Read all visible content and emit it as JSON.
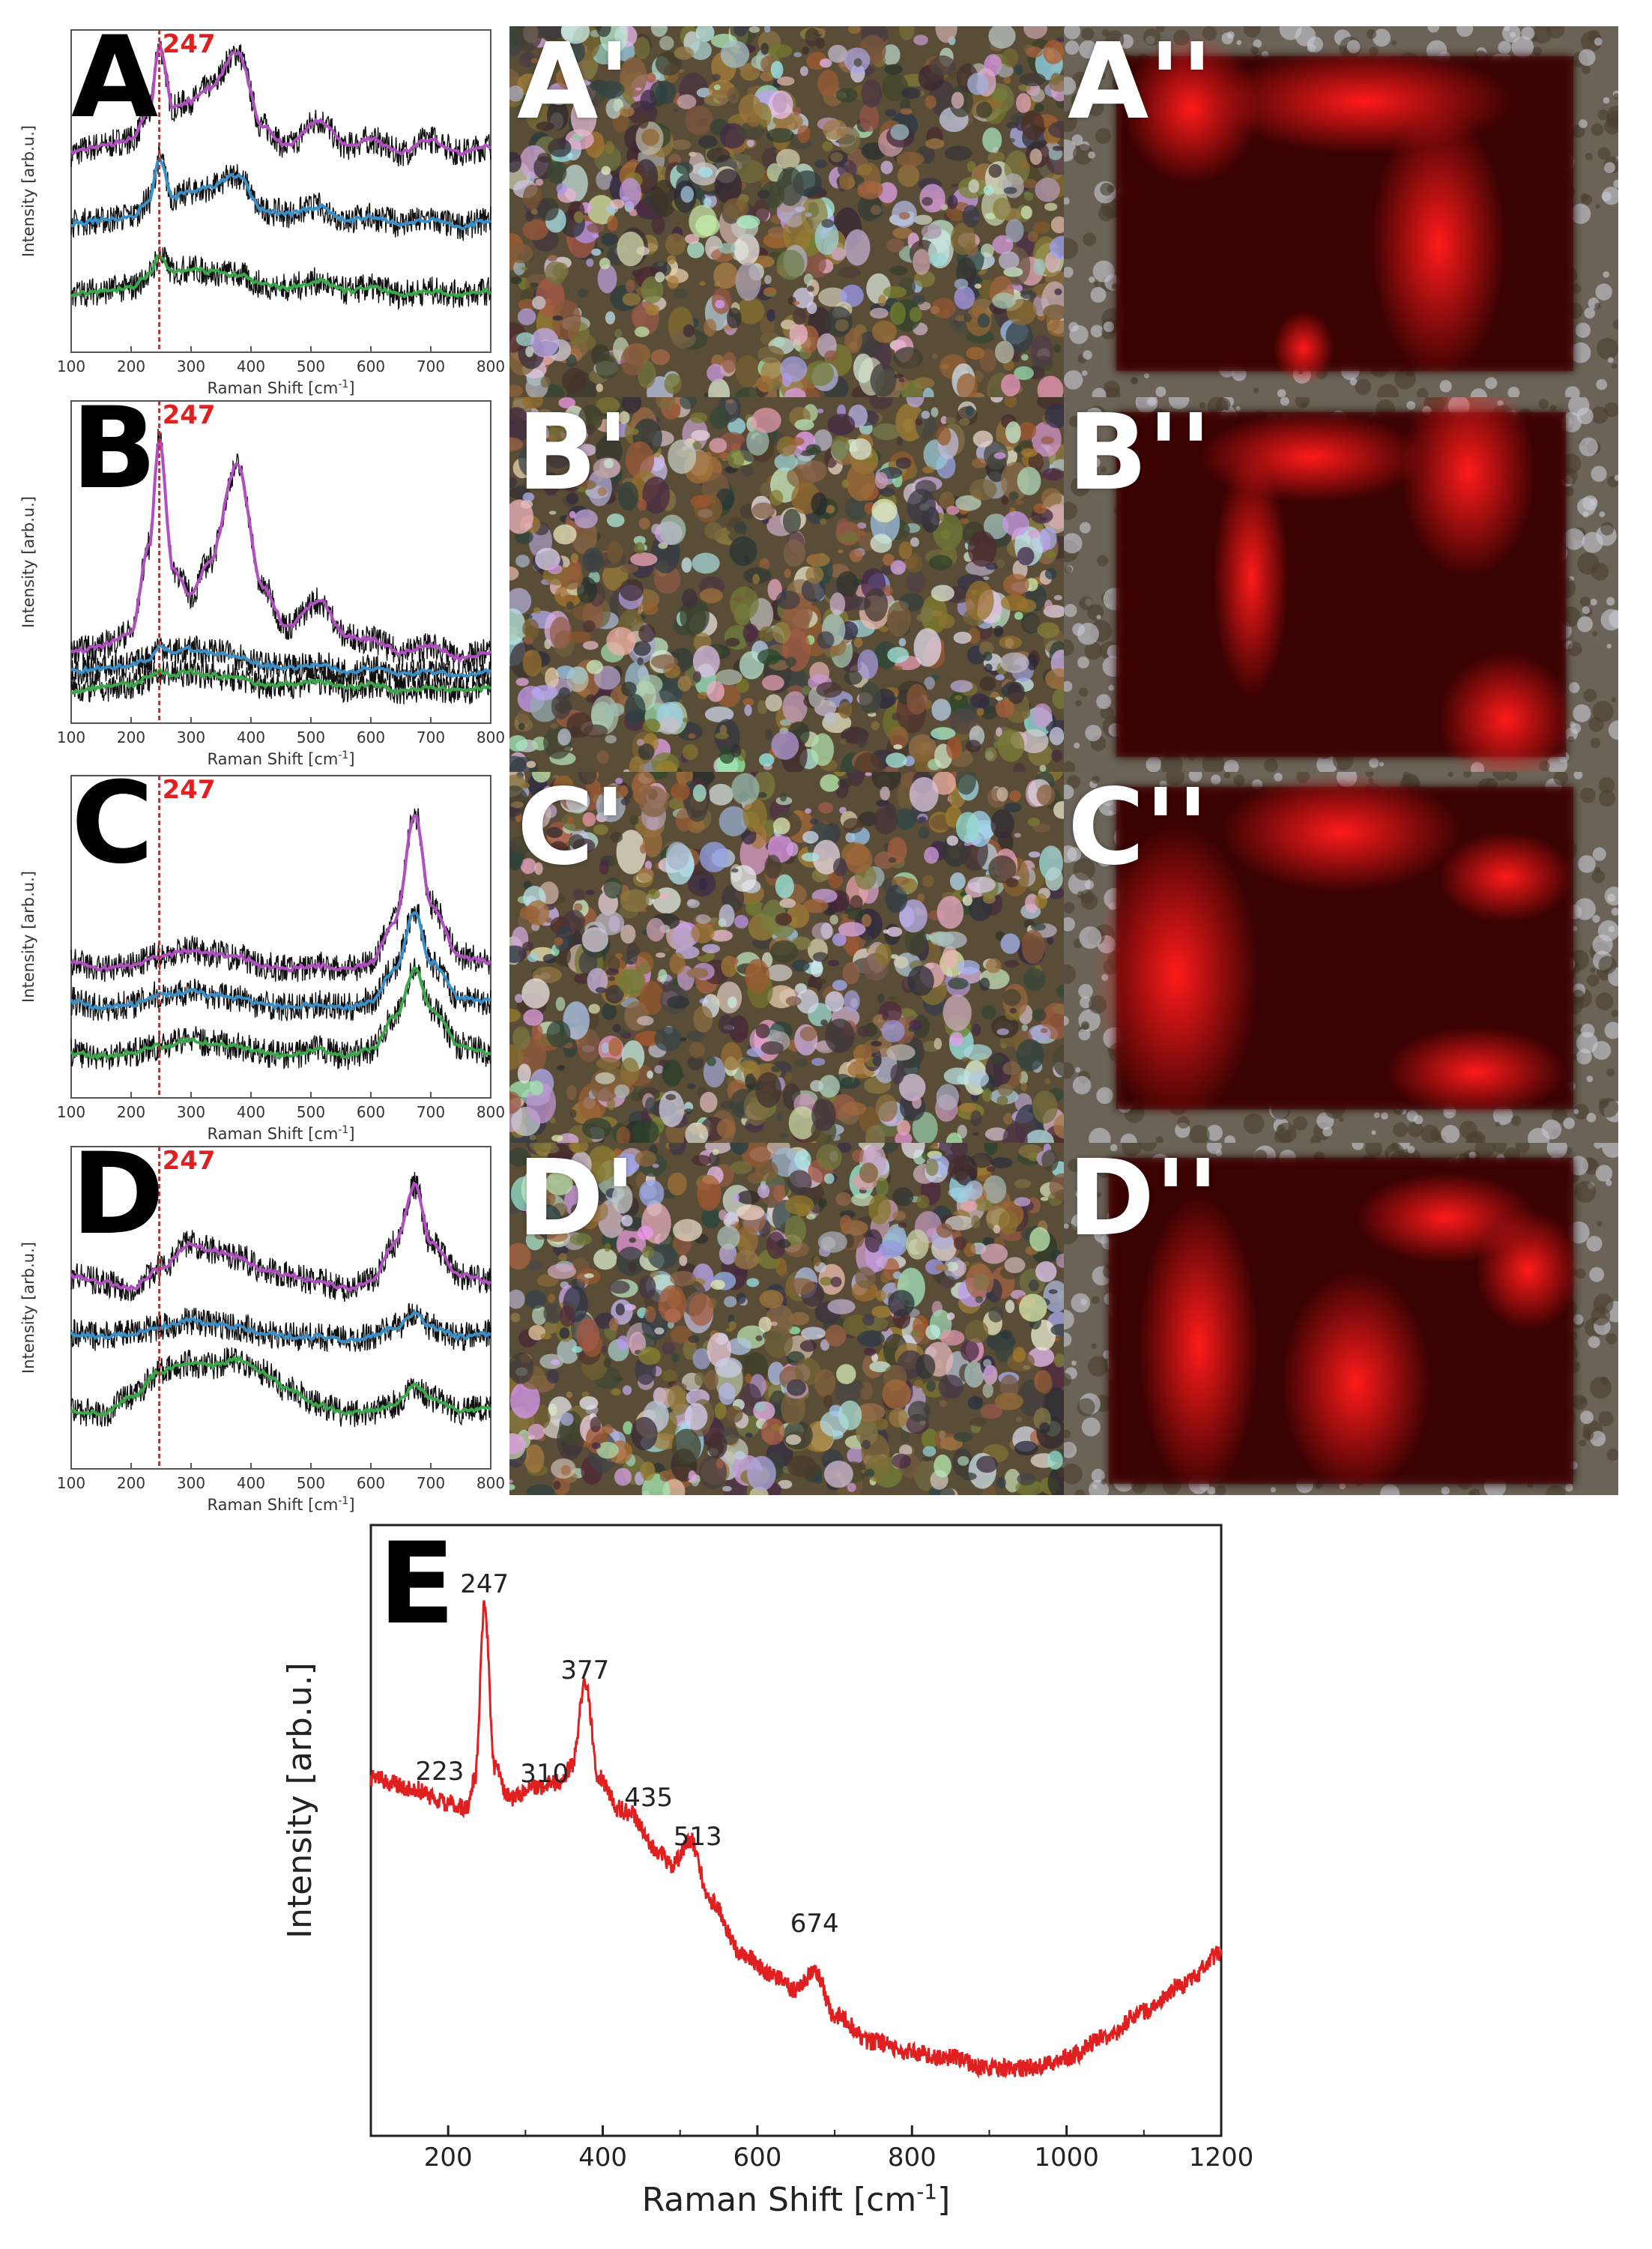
{
  "figure": {
    "small_panels": [
      {
        "letter": "A",
        "marker_label": "247",
        "xlabel_main": "Raman Shift [cm",
        "xlabel_sup": "-1",
        "xlabel_end": "]",
        "ylabel": "Intensity [arb.u.]",
        "xticks": [
          "100",
          "200",
          "300",
          "400",
          "500",
          "600",
          "700",
          "800"
        ]
      },
      {
        "letter": "B",
        "marker_label": "247",
        "xlabel_main": "Raman Shift [cm",
        "xlabel_sup": "-1",
        "xlabel_end": "]",
        "ylabel": "Intensity [arb.u.]",
        "xticks": [
          "100",
          "200",
          "300",
          "400",
          "500",
          "600",
          "700",
          "800"
        ]
      },
      {
        "letter": "C",
        "marker_label": "247",
        "xlabel_main": "Raman Shift [cm",
        "xlabel_sup": "-1",
        "xlabel_end": "]",
        "ylabel": "Intensity [arb.u.]",
        "xticks": [
          "100",
          "200",
          "300",
          "400",
          "500",
          "600",
          "700",
          "800"
        ]
      },
      {
        "letter": "D",
        "marker_label": "247",
        "xlabel_main": "Raman Shift [cm",
        "xlabel_sup": "-1",
        "xlabel_end": "]",
        "ylabel": "Intensity [arb.u.]",
        "xticks": [
          "100",
          "200",
          "300",
          "400",
          "500",
          "600",
          "700",
          "800"
        ]
      }
    ],
    "micrograph_labels": [
      "A'",
      "B'",
      "C'",
      "D'"
    ],
    "map_labels": [
      "A''",
      "B''",
      "C''",
      "D''"
    ],
    "panel_e": {
      "letter": "E",
      "ylabel": "Intensity [arb.u.]",
      "xlabel_main": "Raman Shift [cm",
      "xlabel_sup": "-1",
      "xlabel_end": "]",
      "xticks": [
        "200",
        "400",
        "600",
        "800",
        "1000",
        "1200"
      ],
      "peak_labels": [
        "247",
        "377",
        "223",
        "310",
        "435",
        "513",
        "674"
      ]
    },
    "colors": {
      "purple": "#b04fc0",
      "blue": "#3a8fc8",
      "green": "#3aa84a",
      "red": "#e02020",
      "marker": "#e02020"
    }
  },
  "chart_data": [
    {
      "type": "line",
      "title": "A",
      "xlabel": "Raman Shift [cm-1]",
      "ylabel": "Intensity [arb.u.]",
      "xlim": [
        100,
        800
      ],
      "x": [
        100,
        150,
        200,
        230,
        247,
        270,
        300,
        330,
        377,
        420,
        460,
        513,
        560,
        600,
        650,
        700,
        750,
        800
      ],
      "series": [
        {
          "values": [
            0.62,
            0.64,
            0.66,
            0.74,
            0.95,
            0.76,
            0.78,
            0.82,
            0.93,
            0.7,
            0.64,
            0.72,
            0.64,
            0.66,
            0.62,
            0.66,
            0.62,
            0.64
          ]
        },
        {
          "values": [
            0.4,
            0.41,
            0.42,
            0.47,
            0.6,
            0.48,
            0.5,
            0.51,
            0.55,
            0.44,
            0.43,
            0.45,
            0.41,
            0.42,
            0.4,
            0.41,
            0.39,
            0.41
          ]
        },
        {
          "values": [
            0.18,
            0.19,
            0.2,
            0.24,
            0.3,
            0.25,
            0.26,
            0.25,
            0.24,
            0.21,
            0.2,
            0.22,
            0.19,
            0.2,
            0.18,
            0.19,
            0.18,
            0.19
          ]
        }
      ],
      "annotations": [
        {
          "x": 247,
          "text": "247"
        }
      ]
    },
    {
      "type": "line",
      "title": "B",
      "xlabel": "Raman Shift [cm-1]",
      "ylabel": "Intensity [arb.u.]",
      "xlim": [
        100,
        800
      ],
      "x": [
        100,
        150,
        200,
        230,
        247,
        270,
        300,
        330,
        377,
        420,
        460,
        513,
        560,
        600,
        650,
        700,
        750,
        800
      ],
      "series": [
        {
          "values": [
            0.22,
            0.24,
            0.28,
            0.55,
            0.88,
            0.48,
            0.4,
            0.5,
            0.8,
            0.42,
            0.3,
            0.38,
            0.27,
            0.26,
            0.22,
            0.24,
            0.2,
            0.22
          ]
        },
        {
          "values": [
            0.16,
            0.17,
            0.18,
            0.2,
            0.24,
            0.22,
            0.23,
            0.22,
            0.21,
            0.18,
            0.17,
            0.18,
            0.16,
            0.17,
            0.15,
            0.16,
            0.15,
            0.16
          ]
        },
        {
          "values": [
            0.1,
            0.11,
            0.12,
            0.14,
            0.16,
            0.15,
            0.16,
            0.15,
            0.14,
            0.12,
            0.12,
            0.13,
            0.11,
            0.12,
            0.1,
            0.11,
            0.1,
            0.11
          ]
        }
      ],
      "annotations": [
        {
          "x": 247,
          "text": "247"
        }
      ]
    },
    {
      "type": "line",
      "title": "C",
      "xlabel": "Raman Shift [cm-1]",
      "ylabel": "Intensity [arb.u.]",
      "xlim": [
        100,
        800
      ],
      "x": [
        100,
        150,
        200,
        247,
        300,
        330,
        377,
        420,
        460,
        513,
        560,
        600,
        640,
        674,
        700,
        750,
        800
      ],
      "series": [
        {
          "values": [
            0.42,
            0.4,
            0.41,
            0.44,
            0.46,
            0.45,
            0.44,
            0.41,
            0.4,
            0.41,
            0.4,
            0.42,
            0.55,
            0.88,
            0.6,
            0.44,
            0.42
          ]
        },
        {
          "values": [
            0.3,
            0.28,
            0.29,
            0.32,
            0.33,
            0.32,
            0.31,
            0.29,
            0.28,
            0.29,
            0.28,
            0.3,
            0.4,
            0.58,
            0.42,
            0.31,
            0.3
          ]
        },
        {
          "values": [
            0.14,
            0.13,
            0.14,
            0.16,
            0.18,
            0.17,
            0.16,
            0.14,
            0.13,
            0.15,
            0.13,
            0.15,
            0.25,
            0.4,
            0.28,
            0.16,
            0.14
          ]
        }
      ],
      "annotations": [
        {
          "x": 247,
          "text": "247"
        }
      ]
    },
    {
      "type": "line",
      "title": "D",
      "xlabel": "Raman Shift [cm-1]",
      "ylabel": "Intensity [arb.u.]",
      "xlim": [
        100,
        800
      ],
      "x": [
        100,
        150,
        200,
        247,
        300,
        330,
        377,
        420,
        460,
        513,
        560,
        600,
        640,
        674,
        700,
        750,
        800
      ],
      "series": [
        {
          "values": [
            0.6,
            0.58,
            0.56,
            0.62,
            0.7,
            0.68,
            0.66,
            0.62,
            0.6,
            0.58,
            0.56,
            0.58,
            0.7,
            0.88,
            0.7,
            0.6,
            0.58
          ]
        },
        {
          "values": [
            0.42,
            0.41,
            0.42,
            0.44,
            0.46,
            0.45,
            0.44,
            0.42,
            0.41,
            0.41,
            0.4,
            0.41,
            0.44,
            0.48,
            0.44,
            0.41,
            0.42
          ]
        },
        {
          "values": [
            0.18,
            0.17,
            0.22,
            0.3,
            0.33,
            0.32,
            0.34,
            0.3,
            0.25,
            0.2,
            0.17,
            0.18,
            0.2,
            0.26,
            0.22,
            0.18,
            0.19
          ]
        }
      ],
      "annotations": [
        {
          "x": 247,
          "text": "247"
        }
      ]
    },
    {
      "type": "line",
      "title": "E",
      "xlabel": "Raman Shift [cm-1]",
      "ylabel": "Intensity [arb.u.]",
      "xlim": [
        100,
        1200
      ],
      "x": [
        100,
        150,
        200,
        223,
        235,
        247,
        260,
        280,
        310,
        340,
        360,
        377,
        395,
        420,
        435,
        470,
        490,
        513,
        540,
        580,
        620,
        650,
        674,
        700,
        750,
        800,
        850,
        900,
        950,
        1000,
        1050,
        1100,
        1150,
        1200
      ],
      "series": [
        {
          "name": "",
          "values": [
            0.62,
            0.6,
            0.57,
            0.56,
            0.62,
            0.95,
            0.64,
            0.58,
            0.6,
            0.61,
            0.64,
            0.8,
            0.62,
            0.56,
            0.55,
            0.48,
            0.45,
            0.5,
            0.38,
            0.28,
            0.24,
            0.21,
            0.25,
            0.16,
            0.11,
            0.09,
            0.08,
            0.06,
            0.06,
            0.08,
            0.12,
            0.17,
            0.22,
            0.28
          ]
        }
      ],
      "annotations": [
        {
          "x": 247,
          "text": "247"
        },
        {
          "x": 377,
          "text": "377"
        },
        {
          "x": 223,
          "text": "223"
        },
        {
          "x": 310,
          "text": "310"
        },
        {
          "x": 435,
          "text": "435"
        },
        {
          "x": 513,
          "text": "513"
        },
        {
          "x": 674,
          "text": "674"
        }
      ]
    }
  ]
}
